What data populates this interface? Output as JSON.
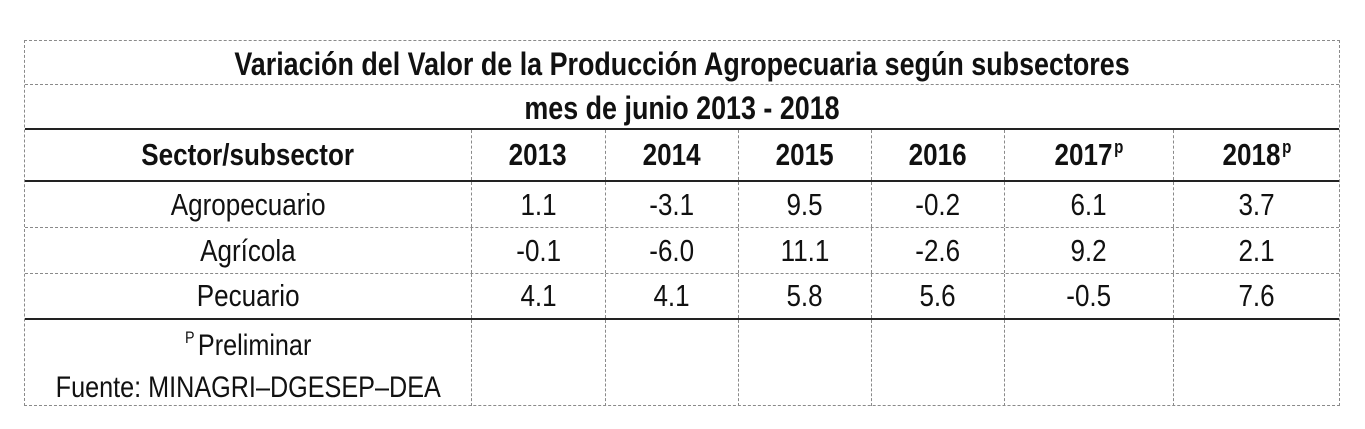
{
  "table": {
    "title": "Variación del Valor de la Producción Agropecuaria según subsectores",
    "subtitle": "mes de junio 2013 - 2018",
    "header": {
      "sector_label": "Sector/subsector",
      "years": [
        {
          "label": "2013",
          "mark": ""
        },
        {
          "label": "2014",
          "mark": ""
        },
        {
          "label": "2015",
          "mark": ""
        },
        {
          "label": "2016",
          "mark": ""
        },
        {
          "label": "2017",
          "mark": "p"
        },
        {
          "label": "2018",
          "mark": "p"
        }
      ]
    },
    "rows": [
      {
        "sector": "Agropecuario",
        "values": [
          "1.1",
          "-3.1",
          "9.5",
          "-0.2",
          "6.1",
          "3.7"
        ]
      },
      {
        "sector": "Agrícola",
        "values": [
          "-0.1",
          "-6.0",
          "11.1",
          "-2.6",
          "9.2",
          "2.1"
        ]
      },
      {
        "sector": "Pecuario",
        "values": [
          "4.1",
          "4.1",
          "5.8",
          "5.6",
          "-0.5",
          "7.6"
        ]
      }
    ],
    "footnote": {
      "mark": "P",
      "text": "Preliminar",
      "source": "Fuente: MINAGRI–DGESEP–DEA"
    }
  }
}
